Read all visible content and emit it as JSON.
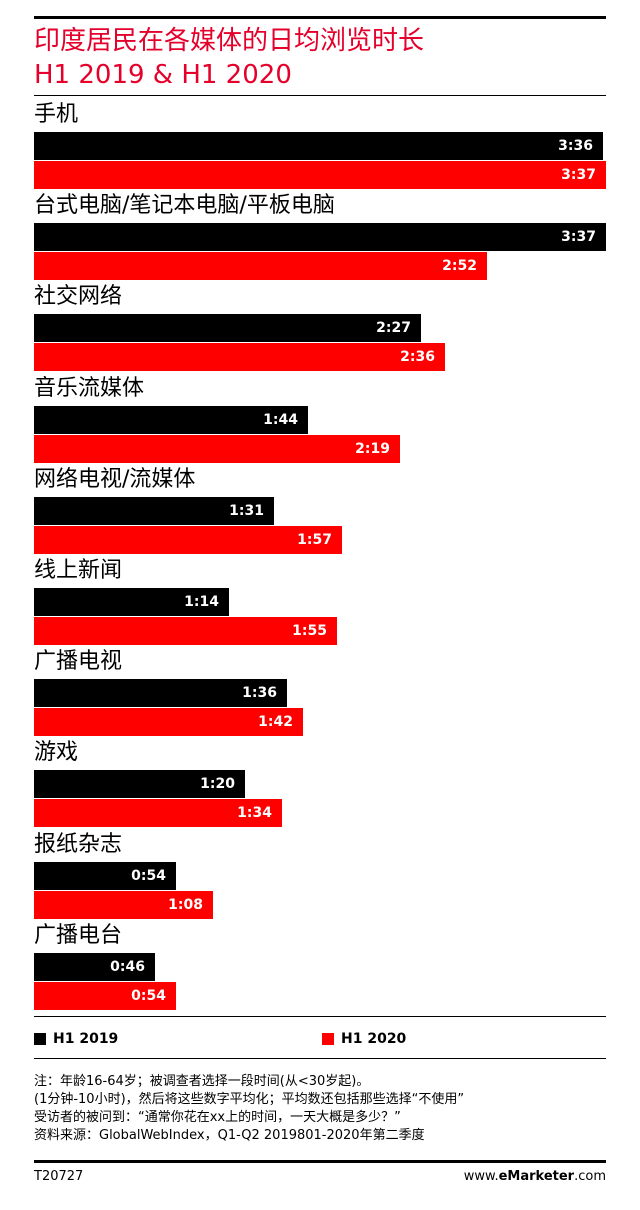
{
  "chart_data": {
    "type": "bar",
    "orientation": "horizontal",
    "title_lines": [
      "印度居民在各媒体的日均浏览时长",
      "H1 2019 & H1 2020"
    ],
    "categories": [
      "手机",
      "台式电脑/笔记本电脑/平板电脑",
      "社交网络",
      "音乐流媒体",
      "网络电视/流媒体",
      "线上新闻",
      "广播电视",
      "游戏",
      "报纸杂志",
      "广播电台"
    ],
    "series": [
      {
        "name": "H1 2019",
        "color": "#000000",
        "labels": [
          "3:36",
          "3:37",
          "2:27",
          "1:44",
          "1:31",
          "1:14",
          "1:36",
          "1:20",
          "0:54",
          "0:46"
        ],
        "values": [
          216,
          217,
          147,
          104,
          91,
          74,
          96,
          80,
          54,
          46
        ]
      },
      {
        "name": "H1 2020",
        "color": "#ff0000",
        "labels": [
          "3:37",
          "2:52",
          "2:36",
          "2:19",
          "1:57",
          "1:55",
          "1:42",
          "1:34",
          "1:08",
          "0:54"
        ],
        "values": [
          217,
          172,
          156,
          139,
          117,
          115,
          102,
          94,
          68,
          54
        ]
      }
    ],
    "value_unit": "minutes",
    "xlim": [
      0,
      217
    ],
    "grid": false,
    "legend_placement": "bottom"
  },
  "notes": [
    "注：年龄16-64岁；被调查者选择一段时间(从<30岁起)。",
    "(1分钟-10小时)，然后将这些数字平均化；平均数还包括那些选择“不使用”",
    "受访者的被问到：“通常你花在xx上的时间，一天大概是多少？”",
    "资料来源：GlobalWebIndex，Q1-Q2 2019801-2020年第二季度"
  ],
  "footer": {
    "code": "T20727",
    "brand_prefix": "www.",
    "brand_e": "e",
    "brand_name": "Marketer",
    "brand_suffix": ".com"
  }
}
